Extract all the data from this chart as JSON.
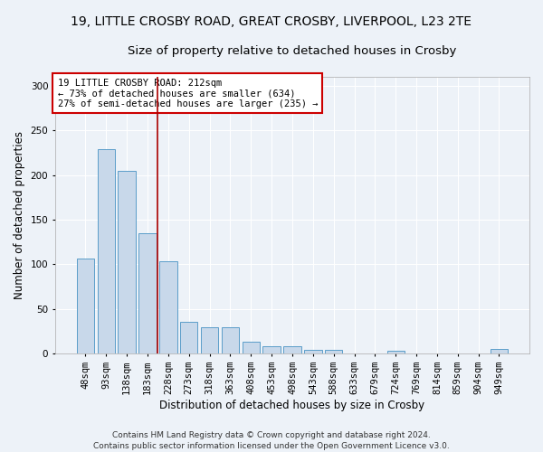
{
  "title1": "19, LITTLE CROSBY ROAD, GREAT CROSBY, LIVERPOOL, L23 2TE",
  "title2": "Size of property relative to detached houses in Crosby",
  "xlabel": "Distribution of detached houses by size in Crosby",
  "ylabel": "Number of detached properties",
  "categories": [
    "48sqm",
    "93sqm",
    "138sqm",
    "183sqm",
    "228sqm",
    "273sqm",
    "318sqm",
    "363sqm",
    "408sqm",
    "453sqm",
    "498sqm",
    "543sqm",
    "588sqm",
    "633sqm",
    "679sqm",
    "724sqm",
    "769sqm",
    "814sqm",
    "859sqm",
    "904sqm",
    "949sqm"
  ],
  "values": [
    107,
    229,
    205,
    135,
    104,
    36,
    30,
    30,
    13,
    8,
    8,
    4,
    4,
    0,
    0,
    3,
    0,
    0,
    0,
    0,
    5
  ],
  "bar_color": "#c8d8ea",
  "bar_edge_color": "#5b9dc9",
  "ylim": [
    0,
    310
  ],
  "yticks": [
    0,
    50,
    100,
    150,
    200,
    250,
    300
  ],
  "vline_x_index": 3.5,
  "vline_color": "#aa0000",
  "annotation_text": "19 LITTLE CROSBY ROAD: 212sqm\n← 73% of detached houses are smaller (634)\n27% of semi-detached houses are larger (235) →",
  "annotation_box_color": "#ffffff",
  "annotation_box_edge": "#cc0000",
  "footer": "Contains HM Land Registry data © Crown copyright and database right 2024.\nContains public sector information licensed under the Open Government Licence v3.0.",
  "bg_color": "#edf2f8",
  "grid_color": "#ffffff",
  "title1_fontsize": 10,
  "title2_fontsize": 9.5,
  "xlabel_fontsize": 8.5,
  "ylabel_fontsize": 8.5,
  "tick_fontsize": 7.5,
  "annotation_fontsize": 7.5,
  "footer_fontsize": 6.5
}
